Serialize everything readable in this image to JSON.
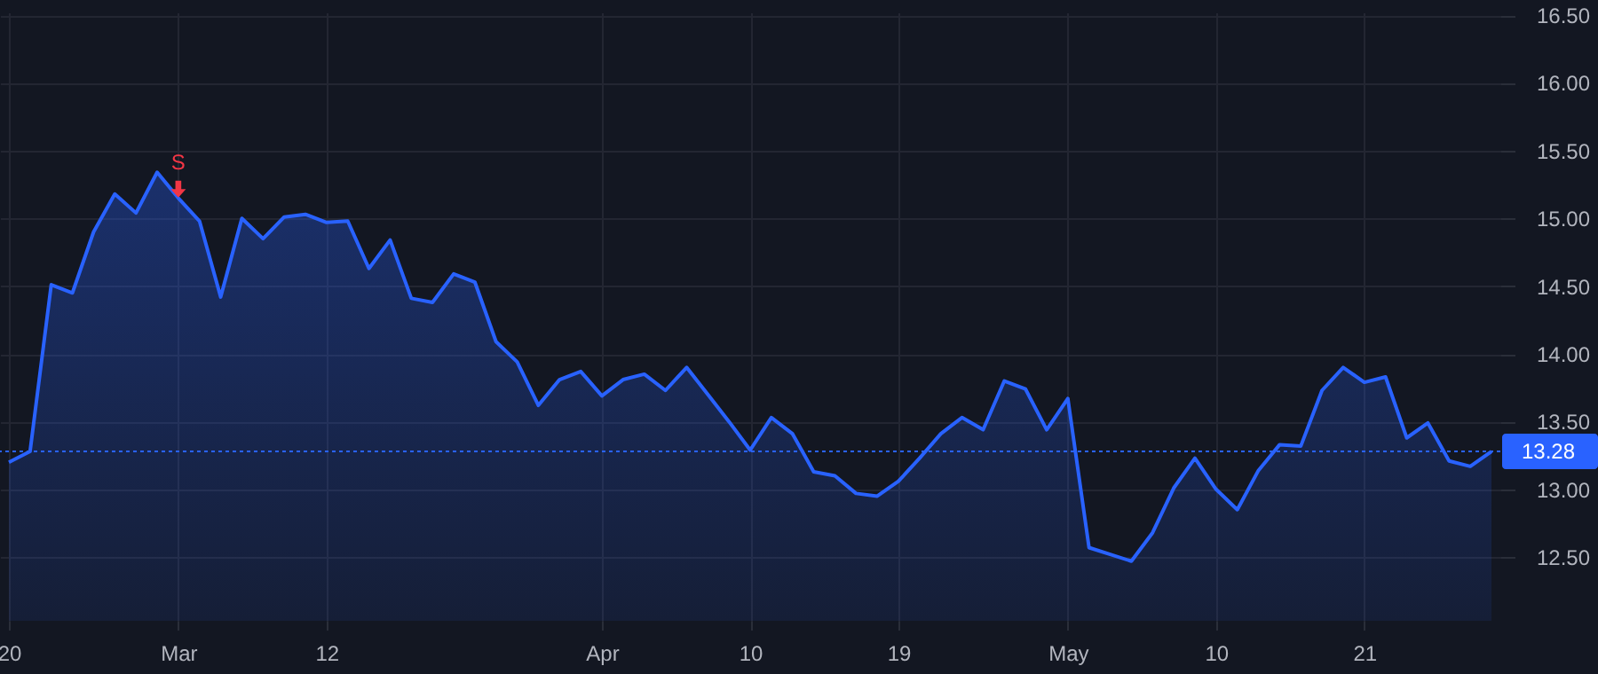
{
  "chart_data": {
    "type": "area",
    "categories": [
      "20",
      null,
      null,
      null,
      null,
      null,
      null,
      null,
      "Mar",
      null,
      null,
      null,
      null,
      null,
      null,
      "12",
      null,
      null,
      null,
      null,
      null,
      null,
      null,
      null,
      null,
      null,
      null,
      null,
      "Apr",
      null,
      null,
      null,
      null,
      null,
      null,
      "10",
      null,
      null,
      null,
      null,
      null,
      null,
      "19",
      null,
      null,
      null,
      null,
      null,
      null,
      null,
      "May",
      null,
      null,
      null,
      null,
      null,
      null,
      "10",
      null,
      null,
      null,
      null,
      null,
      null,
      "21",
      null,
      null,
      null,
      null,
      null,
      null
    ],
    "series": [
      {
        "color": "#2962ff",
        "values": [
          13.2,
          13.28,
          14.51,
          14.45,
          14.9,
          15.18,
          15.04,
          15.34,
          15.15,
          14.98,
          14.42,
          15.0,
          14.85,
          15.01,
          15.03,
          14.97,
          14.98,
          14.63,
          14.84,
          14.41,
          14.38,
          14.59,
          14.53,
          14.09,
          13.94,
          13.62,
          13.81,
          13.87,
          13.69,
          13.81,
          13.85,
          13.73,
          13.9,
          13.7,
          13.5,
          13.29,
          13.53,
          13.41,
          13.13,
          13.1,
          12.97,
          12.95,
          13.06,
          13.23,
          13.41,
          13.53,
          13.44,
          13.8,
          13.74,
          13.44,
          13.67,
          12.57,
          12.52,
          12.47,
          12.68,
          13.01,
          13.23,
          13.0,
          12.85,
          13.14,
          13.33,
          13.32,
          13.73,
          13.9,
          13.79,
          13.83,
          13.38,
          13.49,
          13.21,
          13.17,
          13.28
        ]
      }
    ],
    "ylim": [
      12.03,
      16.52
    ],
    "yticks": [
      {
        "value": 12.5,
        "label": "12.50"
      },
      {
        "value": 13,
        "label": "13.00"
      },
      {
        "value": 13.5,
        "label": "13.50"
      },
      {
        "value": 14,
        "label": "14.00"
      },
      {
        "value": 14.5,
        "label": "14.50"
      },
      {
        "value": 15,
        "label": "15.00"
      },
      {
        "value": 15.5,
        "label": "15.50"
      },
      {
        "value": 16,
        "label": "16.00"
      },
      {
        "value": 16.5,
        "label": "16.50"
      }
    ],
    "grid": true,
    "marker": "none",
    "line_style": "solid",
    "ref_lines": [
      {
        "axis": "y",
        "value": 13.28,
        "label": "13.28",
        "color": "#2962ff",
        "line_style": "dotted"
      }
    ],
    "annotations": [
      {
        "text": "S",
        "x": "Mar",
        "y": 15.15
      }
    ]
  }
}
